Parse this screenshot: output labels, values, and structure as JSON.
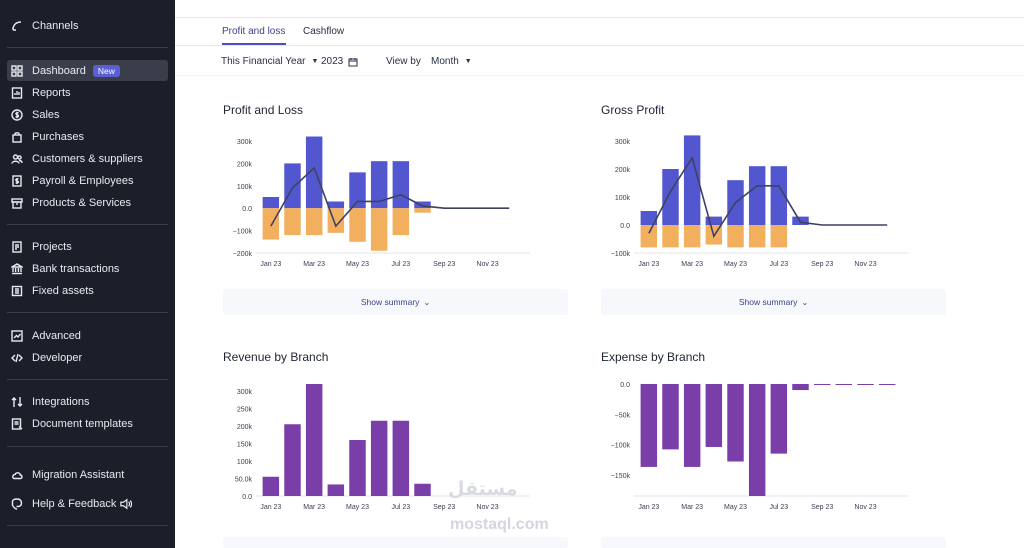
{
  "sidebar": {
    "items": [
      {
        "label": "Channels",
        "icon": "channels-icon"
      },
      {
        "label": "Dashboard",
        "icon": "dashboard-icon",
        "badge": "New",
        "active": true
      },
      {
        "label": "Reports",
        "icon": "reports-icon"
      },
      {
        "label": "Sales",
        "icon": "sales-icon"
      },
      {
        "label": "Purchases",
        "icon": "purchases-icon"
      },
      {
        "label": "Customers & suppliers",
        "icon": "contacts-icon"
      },
      {
        "label": "Payroll & Employees",
        "icon": "payroll-icon"
      },
      {
        "label": "Products & Services",
        "icon": "products-icon"
      },
      {
        "label": "Projects",
        "icon": "projects-icon"
      },
      {
        "label": "Bank transactions",
        "icon": "bank-icon"
      },
      {
        "label": "Fixed assets",
        "icon": "assets-icon"
      },
      {
        "label": "Advanced",
        "icon": "advanced-icon"
      },
      {
        "label": "Developer",
        "icon": "code-icon"
      },
      {
        "label": "Integrations",
        "icon": "integrations-icon"
      },
      {
        "label": "Document templates",
        "icon": "templates-icon"
      },
      {
        "label": "Migration Assistant",
        "icon": "cloud-icon"
      },
      {
        "label": "Help & Feedback",
        "icon": "help-icon"
      }
    ]
  },
  "tabs": [
    "Profit and loss",
    "Cashflow"
  ],
  "filters": {
    "period": "This Financial Year",
    "year": "2023",
    "view_by_label": "View by",
    "view_by": "Month"
  },
  "cards": {
    "pl_title": "Profit and Loss",
    "gp_title": "Gross Profit",
    "rev_title": "Revenue by Branch",
    "exp_title": "Expense by Branch",
    "summary_label": "Show summary"
  },
  "watermark": {
    "arabic": "مستقل",
    "latin": "mostaql.com"
  },
  "colors": {
    "income": "#5257d0",
    "expense": "#f2b05f",
    "line": "#3e4160",
    "branch": "#7a3ea8"
  },
  "chart_data": [
    {
      "type": "bar",
      "title": "Profit and Loss",
      "categories": [
        "Jan 23",
        "Feb 23",
        "Mar 23",
        "Apr 23",
        "May 23",
        "Jun 23",
        "Jul 23",
        "Aug 23",
        "Sep 23",
        "Oct 23",
        "Nov 23",
        "Dec 23"
      ],
      "x_tick_labels": [
        "Jan 23",
        "Mar 23",
        "May 23",
        "Jul 23",
        "Sep 23",
        "Nov 23"
      ],
      "y_ticks": [
        "300k",
        "200k",
        "100k",
        "0.0",
        "−100k",
        "−200k"
      ],
      "ylim": [
        -200000,
        300000
      ],
      "series": [
        {
          "values": [
            50000,
            200000,
            320000,
            30000,
            160000,
            210000,
            210000,
            30000,
            0,
            0,
            0,
            0
          ]
        },
        {
          "values": [
            -140000,
            -120000,
            -120000,
            -110000,
            -150000,
            -190000,
            -120000,
            -20000,
            0,
            0,
            0,
            0
          ]
        },
        {
          "type": "line",
          "values": [
            -80000,
            90000,
            180000,
            -80000,
            30000,
            30000,
            60000,
            10000,
            0,
            0,
            0,
            0
          ]
        }
      ]
    },
    {
      "type": "bar",
      "title": "Gross Profit",
      "categories": [
        "Jan 23",
        "Feb 23",
        "Mar 23",
        "Apr 23",
        "May 23",
        "Jun 23",
        "Jul 23",
        "Aug 23",
        "Sep 23",
        "Oct 23",
        "Nov 23",
        "Dec 23"
      ],
      "x_tick_labels": [
        "Jan 23",
        "Mar 23",
        "May 23",
        "Jul 23",
        "Sep 23",
        "Nov 23"
      ],
      "y_ticks": [
        "300k",
        "200k",
        "100k",
        "0.0",
        "−100k"
      ],
      "ylim": [
        -100000,
        300000
      ],
      "series": [
        {
          "values": [
            50000,
            200000,
            320000,
            30000,
            160000,
            210000,
            210000,
            30000,
            0,
            0,
            0,
            0
          ]
        },
        {
          "values": [
            -80000,
            -80000,
            -80000,
            -70000,
            -80000,
            -80000,
            -80000,
            0,
            0,
            0,
            0,
            0
          ]
        },
        {
          "type": "line",
          "values": [
            -30000,
            120000,
            240000,
            -40000,
            80000,
            140000,
            140000,
            10000,
            0,
            0,
            0,
            0
          ]
        }
      ]
    },
    {
      "type": "bar",
      "title": "Revenue by Branch",
      "categories": [
        "Jan 23",
        "Feb 23",
        "Mar 23",
        "Apr 23",
        "May 23",
        "Jun 23",
        "Jul 23",
        "Aug 23",
        "Sep 23",
        "Oct 23",
        "Nov 23",
        "Dec 23"
      ],
      "x_tick_labels": [
        "Jan 23",
        "Mar 23",
        "May 23",
        "Jul 23",
        "Sep 23",
        "Nov 23"
      ],
      "y_ticks": [
        "300k",
        "250k",
        "200k",
        "150k",
        "100k",
        "50.0k",
        "0.0"
      ],
      "ylim": [
        0,
        320000
      ],
      "values": [
        55000,
        205000,
        320000,
        33000,
        160000,
        215000,
        215000,
        35000,
        0,
        0,
        0,
        0
      ]
    },
    {
      "type": "bar",
      "title": "Expense by Branch",
      "categories": [
        "Jan 23",
        "Feb 23",
        "Mar 23",
        "Apr 23",
        "May 23",
        "Jun 23",
        "Jul 23",
        "Aug 23",
        "Sep 23",
        "Oct 23",
        "Nov 23",
        "Dec 23"
      ],
      "x_tick_labels": [
        "Jan 23",
        "Mar 23",
        "May 23",
        "Jul 23",
        "Sep 23",
        "Nov 23"
      ],
      "y_ticks": [
        "0.0",
        "−50k",
        "−100k",
        "−150k"
      ],
      "ylim": [
        -185000,
        0
      ],
      "values": [
        -137000,
        -108000,
        -137000,
        -104000,
        -128000,
        -185000,
        -115000,
        -10000,
        -1000,
        -1000,
        -1000,
        -1000
      ]
    }
  ]
}
